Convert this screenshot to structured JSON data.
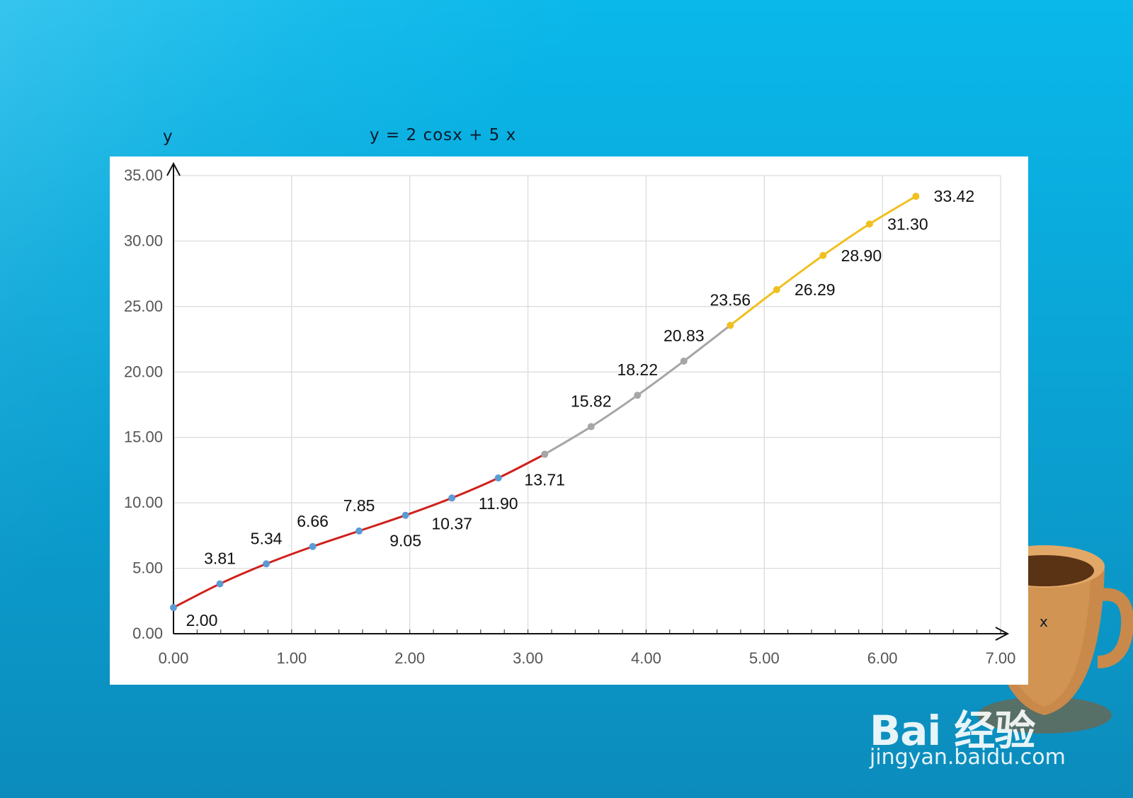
{
  "page": {
    "y_axis_caption": "y",
    "equation": "y  =  2  cosx  +  5  x",
    "x_axis_caption": "x",
    "watermark_brand": "Bai 经验",
    "watermark_url": "jingyan.baidu.com"
  },
  "colors": {
    "background_top": "#0ab8ea",
    "background_bottom": "#0b8cbc",
    "segment_1": "#d0201c",
    "segment_2": "#a6a6a6",
    "segment_3": "#f0c020",
    "marker_1": "#5b9bd5",
    "grid": "#d9d9d9"
  },
  "chart_data": {
    "type": "line",
    "title": "y = 2 cosx + 5 x",
    "xlabel": "x",
    "ylabel": "y",
    "xlim": [
      0,
      7
    ],
    "ylim": [
      0,
      35
    ],
    "x_ticks": [
      "0.00",
      "1.00",
      "2.00",
      "3.00",
      "4.00",
      "5.00",
      "6.00",
      "7.00"
    ],
    "y_ticks": [
      "0.00",
      "5.00",
      "10.00",
      "15.00",
      "20.00",
      "25.00",
      "30.00",
      "35.00"
    ],
    "grid": true,
    "series": [
      {
        "color": "#d0201c",
        "marker": "#5b9bd5",
        "x": [
          0,
          0.3927,
          0.7854,
          1.1781,
          1.5708,
          1.9635,
          2.3562,
          2.7489,
          3.1416
        ],
        "values": [
          2.0,
          3.81,
          5.34,
          6.66,
          7.85,
          9.05,
          10.37,
          11.9,
          13.71
        ],
        "labels": [
          "2.00",
          "3.81",
          "5.34",
          "6.66",
          "7.85",
          "9.05",
          "10.37",
          "11.90",
          "13.71"
        ]
      },
      {
        "color": "#a6a6a6",
        "marker": "#a6a6a6",
        "x": [
          3.1416,
          3.5343,
          3.927,
          4.3197,
          4.7124
        ],
        "values": [
          13.71,
          15.82,
          18.22,
          20.83,
          23.56
        ],
        "labels": [
          "",
          "15.82",
          "18.22",
          "20.83",
          ""
        ]
      },
      {
        "color": "#f0c020",
        "marker": "#f0c020",
        "x": [
          4.7124,
          5.1051,
          5.4978,
          5.8905,
          6.2832
        ],
        "values": [
          23.56,
          26.29,
          28.9,
          31.3,
          33.42
        ],
        "labels": [
          "23.56",
          "26.29",
          "28.90",
          "31.30",
          "33.42"
        ]
      }
    ]
  }
}
